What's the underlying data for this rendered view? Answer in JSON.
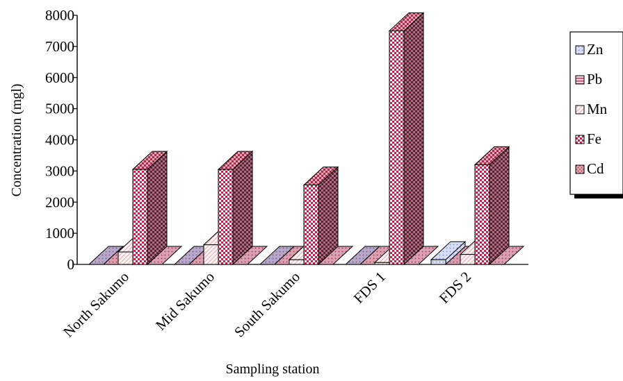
{
  "chart_data": {
    "type": "bar",
    "style": "3d-clustered-column",
    "categories": [
      "North Sakumo",
      "Mid Sakumo",
      "South Sakumo",
      "FDS 1",
      "FDS 2"
    ],
    "series": [
      {
        "name": "Zn",
        "values": [
          0,
          0,
          0,
          0,
          150
        ]
      },
      {
        "name": "Pb",
        "values": [
          0,
          0,
          0,
          0,
          0
        ]
      },
      {
        "name": "Mn",
        "values": [
          400,
          630,
          150,
          60,
          320
        ]
      },
      {
        "name": "Fe",
        "values": [
          3050,
          3050,
          2550,
          7500,
          3200
        ]
      },
      {
        "name": "Cd",
        "values": [
          0,
          0,
          0,
          0,
          0
        ]
      }
    ],
    "xlabel": "Sampling station",
    "ylabel": "Concentration (mgl)",
    "ylim": [
      0,
      8000
    ],
    "yticks": [
      0,
      1000,
      2000,
      3000,
      4000,
      5000,
      6000,
      7000,
      8000
    ],
    "legend_position": "right",
    "grid": false,
    "colors": {
      "Zn": "#cfd6f0",
      "Pb": "#e3b6c6",
      "Mn": "#fbe3e3",
      "Fe": "#c8204a",
      "Cd": "#d98a98",
      "side_dark": "#7a3a48",
      "floor": "#d98a98"
    }
  }
}
